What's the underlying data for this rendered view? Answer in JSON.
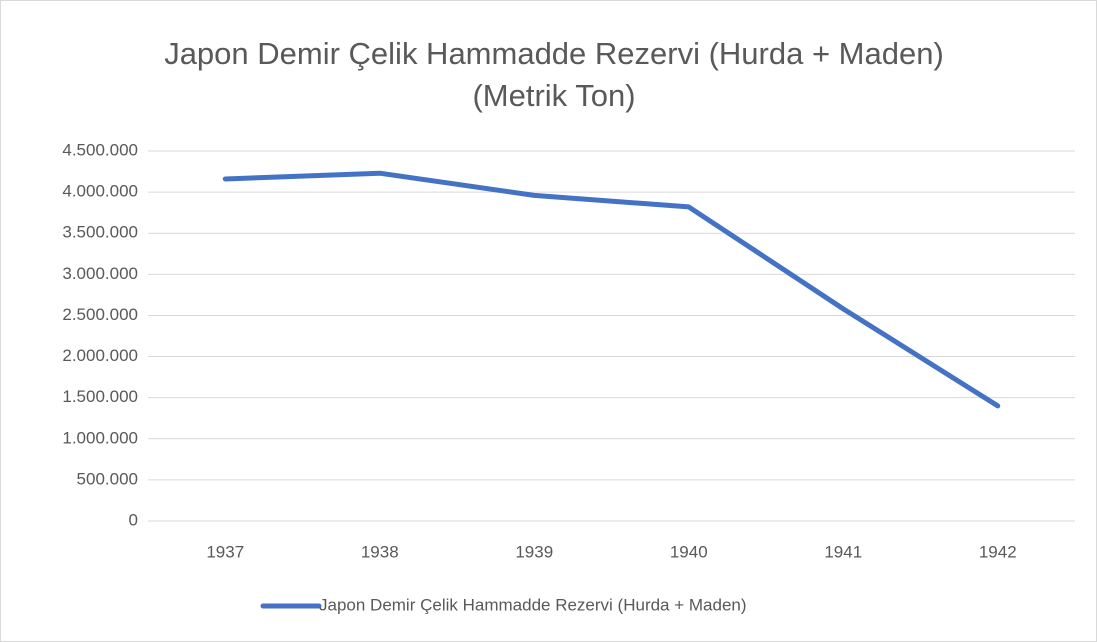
{
  "chart_data": {
    "type": "line",
    "title": "Japon Demir Çelik Hammadde Rezervi (Hurda + Maden) (Metrik Ton)",
    "categories": [
      "1937",
      "1938",
      "1939",
      "1940",
      "1941",
      "1942"
    ],
    "series": [
      {
        "name": "Japon Demir Çelik Hammadde Rezervi (Hurda + Maden)",
        "color": "#4472c4",
        "values": [
          4160000,
          4230000,
          3960000,
          3820000,
          2580000,
          1400000
        ]
      }
    ],
    "ylim": [
      0,
      4500000
    ],
    "yticks": [
      0,
      {
        "value": 500000,
        "label": "500.000"
      },
      {
        "value": 1000000,
        "label": "1.000.000"
      },
      {
        "value": 1500000,
        "label": "1.500.000"
      },
      {
        "value": 2000000,
        "label": "2.000.000"
      },
      {
        "value": 2500000,
        "label": "2.500.000"
      },
      {
        "value": 3000000,
        "label": "3.000.000"
      },
      {
        "value": 3500000,
        "label": "3.500.000"
      },
      {
        "value": 4000000,
        "label": "4.000.000"
      },
      {
        "value": 4500000,
        "label": "4.500.000"
      }
    ],
    "grid": true,
    "legend": "bottom"
  }
}
